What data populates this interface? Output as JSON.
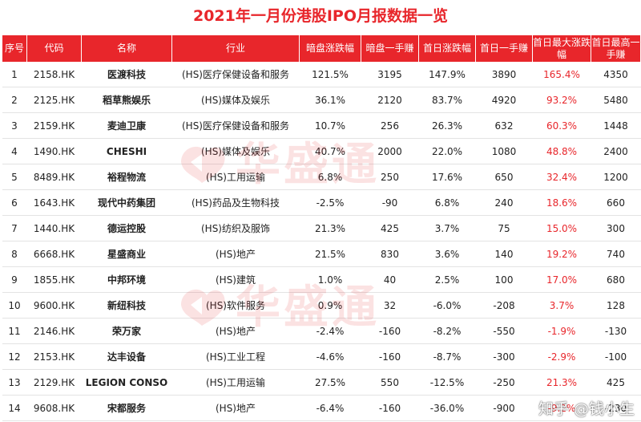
{
  "title": "2021年一月份港股IPO月报数据一览",
  "headers": [
    "序号",
    "代码",
    "名称",
    "行业",
    "暗盘涨跌幅",
    "暗盘一手赚",
    "首日涨跌幅",
    "首日一手赚",
    "首日最大涨跌幅",
    "首日最高一手赚"
  ],
  "rows": [
    {
      "no": "1",
      "code": "2158.HK",
      "name": "医渡科技",
      "industry": "(HS)医疗保健设备和服务",
      "grey_pct": "121.5%",
      "grey_lot": "3195",
      "day1_pct": "147.9%",
      "day1_lot": "3890",
      "max_pct": "165.4%",
      "max_lot": "4350"
    },
    {
      "no": "2",
      "code": "2125.HK",
      "name": "稻草熊娱乐",
      "industry": "(HS)媒体及娱乐",
      "grey_pct": "36.1%",
      "grey_lot": "2120",
      "day1_pct": "83.7%",
      "day1_lot": "4920",
      "max_pct": "93.2%",
      "max_lot": "5480"
    },
    {
      "no": "3",
      "code": "2159.HK",
      "name": "麦迪卫康",
      "industry": "(HS)医疗保健设备和服务",
      "grey_pct": "10.7%",
      "grey_lot": "256",
      "day1_pct": "26.3%",
      "day1_lot": "632",
      "max_pct": "60.3%",
      "max_lot": "1448"
    },
    {
      "no": "4",
      "code": "1490.HK",
      "name": "CHESHI",
      "industry": "(HS)媒体及娱乐",
      "grey_pct": "40.7%",
      "grey_lot": "2000",
      "day1_pct": "22.0%",
      "day1_lot": "1080",
      "max_pct": "48.8%",
      "max_lot": "2400"
    },
    {
      "no": "5",
      "code": "8489.HK",
      "name": "裕程物流",
      "industry": "(HS)工用运输",
      "grey_pct": "6.8%",
      "grey_lot": "250",
      "day1_pct": "17.6%",
      "day1_lot": "650",
      "max_pct": "32.4%",
      "max_lot": "1200"
    },
    {
      "no": "6",
      "code": "1643.HK",
      "name": "现代中药集团",
      "industry": "(HS)药品及生物科技",
      "grey_pct": "-2.5%",
      "grey_lot": "-90",
      "day1_pct": "6.8%",
      "day1_lot": "240",
      "max_pct": "18.6%",
      "max_lot": "660"
    },
    {
      "no": "7",
      "code": "1440.HK",
      "name": "德运控股",
      "industry": "(HS)纺织及服饰",
      "grey_pct": "21.3%",
      "grey_lot": "425",
      "day1_pct": "3.7%",
      "day1_lot": "75",
      "max_pct": "15.0%",
      "max_lot": "300"
    },
    {
      "no": "8",
      "code": "6668.HK",
      "name": "星盛商业",
      "industry": "(HS)地产",
      "grey_pct": "21.5%",
      "grey_lot": "830",
      "day1_pct": "3.6%",
      "day1_lot": "140",
      "max_pct": "19.2%",
      "max_lot": "740"
    },
    {
      "no": "9",
      "code": "1855.HK",
      "name": "中邦环境",
      "industry": "(HS)建筑",
      "grey_pct": "1.0%",
      "grey_lot": "40",
      "day1_pct": "2.5%",
      "day1_lot": "100",
      "max_pct": "17.0%",
      "max_lot": "680"
    },
    {
      "no": "10",
      "code": "9600.HK",
      "name": "新纽科技",
      "industry": "(HS)软件服务",
      "grey_pct": "0.9%",
      "grey_lot": "32",
      "day1_pct": "-6.0%",
      "day1_lot": "-208",
      "max_pct": "3.7%",
      "max_lot": "128"
    },
    {
      "no": "11",
      "code": "2146.HK",
      "name": "荣万家",
      "industry": "(HS)地产",
      "grey_pct": "-2.4%",
      "grey_lot": "-160",
      "day1_pct": "-8.2%",
      "day1_lot": "-550",
      "max_pct": "-1.9%",
      "max_lot": "-130"
    },
    {
      "no": "12",
      "code": "2153.HK",
      "name": "达丰设备",
      "industry": "(HS)工业工程",
      "grey_pct": "-4.6%",
      "grey_lot": "-160",
      "day1_pct": "-8.7%",
      "day1_lot": "-300",
      "max_pct": "-2.9%",
      "max_lot": "-100"
    },
    {
      "no": "13",
      "code": "2129.HK",
      "name": "LEGION CONSO",
      "industry": "(HS)工用运输",
      "grey_pct": "27.5%",
      "grey_lot": "550",
      "day1_pct": "-12.5%",
      "day1_lot": "-250",
      "max_pct": "21.3%",
      "max_lot": "425"
    },
    {
      "no": "14",
      "code": "9608.HK",
      "name": "宋都服务",
      "industry": "(HS)地产",
      "grey_pct": "-6.4%",
      "grey_lot": "-160",
      "day1_pct": "-36.0%",
      "day1_lot": "-900",
      "max_pct": "-9.2%",
      "max_lot": "-230"
    }
  ],
  "watermark_text": "华盛通",
  "footer_watermark": "知乎 @钱小生",
  "colors": {
    "accent": "#e8262b",
    "header_bg": "#e8262b"
  }
}
